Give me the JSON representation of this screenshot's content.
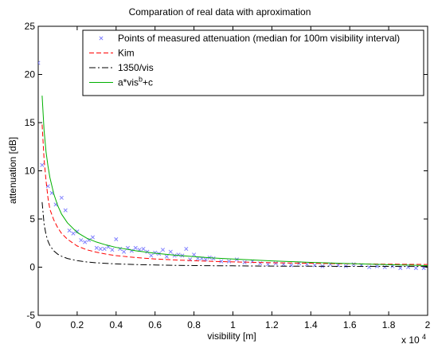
{
  "chart_data": {
    "type": "line",
    "title": "Comparation of real data with aproximation",
    "xlabel": "visibility [m]",
    "ylabel": "attenuation [dB]",
    "x_exponent_label": "x 10",
    "x_exponent_power": "4",
    "xlim": [
      0,
      20000
    ],
    "ylim": [
      -5,
      25
    ],
    "grid": false,
    "legend_placement": "top-right",
    "xticks": [
      {
        "value": 0,
        "label": "0"
      },
      {
        "value": 2000,
        "label": "0.2"
      },
      {
        "value": 4000,
        "label": "0.4"
      },
      {
        "value": 6000,
        "label": "0.6"
      },
      {
        "value": 8000,
        "label": "0.8"
      },
      {
        "value": 10000,
        "label": "1"
      },
      {
        "value": 12000,
        "label": "1.2"
      },
      {
        "value": 14000,
        "label": "1.4"
      },
      {
        "value": 16000,
        "label": "1.6"
      },
      {
        "value": 18000,
        "label": "1.8"
      },
      {
        "value": 20000,
        "label": "2"
      }
    ],
    "yticks": [
      {
        "value": -5,
        "label": "-5"
      },
      {
        "value": 0,
        "label": "0"
      },
      {
        "value": 5,
        "label": "5"
      },
      {
        "value": 10,
        "label": "10"
      },
      {
        "value": 15,
        "label": "15"
      },
      {
        "value": 20,
        "label": "20"
      },
      {
        "value": 25,
        "label": "25"
      }
    ],
    "series": [
      {
        "name": "Points of measured attenuation (median for 100m visibility interval)",
        "kind": "scatter",
        "marker": "x",
        "color": "#8080ff",
        "x": [
          0,
          200,
          500,
          700,
          900,
          1200,
          1400,
          1600,
          1800,
          2000,
          2200,
          2400,
          2600,
          2800,
          3000,
          3200,
          3400,
          3600,
          3800,
          4000,
          4200,
          4400,
          4600,
          4800,
          5000,
          5200,
          5400,
          5600,
          5800,
          6000,
          6200,
          6400,
          6600,
          6800,
          7000,
          7200,
          7400,
          7600,
          7800,
          8000,
          8200,
          8400,
          8600,
          8800,
          9000,
          9400,
          9800,
          10200,
          10600,
          11000,
          11400,
          11800,
          12200,
          12600,
          13000,
          13400,
          13800,
          14200,
          14600,
          15000,
          15400,
          15800,
          16200,
          16600,
          17000,
          17400,
          17800,
          18200,
          18600,
          19000,
          19400,
          19800
        ],
        "y": [
          21.2,
          10.6,
          8.4,
          7.7,
          6.5,
          7.2,
          5.9,
          3.8,
          3.5,
          3.7,
          2.8,
          2.6,
          2.8,
          3.1,
          2.0,
          1.9,
          1.9,
          2.1,
          1.8,
          2.9,
          1.9,
          1.6,
          2.0,
          1.7,
          2.0,
          1.8,
          1.9,
          1.6,
          1.2,
          1.5,
          1.4,
          1.8,
          1.1,
          1.6,
          1.2,
          1.3,
          1.2,
          1.9,
          0.8,
          1.3,
          0.9,
          0.9,
          0.8,
          1.0,
          0.9,
          0.6,
          0.6,
          0.8,
          0.5,
          0.6,
          0.4,
          0.3,
          0.4,
          0.3,
          0.2,
          0.4,
          0.3,
          0.2,
          0.1,
          0.3,
          0.2,
          0.1,
          0.3,
          0.2,
          0.0,
          0.1,
          0.0,
          0.1,
          -0.1,
          0.0,
          -0.1,
          -0.1
        ]
      },
      {
        "name": "Kim",
        "kind": "line",
        "dash": "6,3",
        "color": "#ff0000",
        "x": [
          200,
          300,
          400,
          500,
          600,
          800,
          1000,
          1200,
          1500,
          2000,
          2500,
          3000,
          3500,
          4000,
          5000,
          6000,
          7000,
          8000,
          9000,
          10000,
          12000,
          14000,
          16000,
          18000,
          20000
        ],
        "y": [
          14.8,
          11.2,
          9.0,
          7.2,
          6.0,
          4.9,
          4.1,
          3.5,
          2.9,
          2.2,
          1.8,
          1.55,
          1.35,
          1.2,
          1.0,
          0.85,
          0.75,
          0.67,
          0.6,
          0.55,
          0.46,
          0.4,
          0.35,
          0.31,
          0.28
        ]
      },
      {
        "name": "1350/vis",
        "kind": "line",
        "dash": "8,3,2,3",
        "color": "#000000",
        "x": [
          200,
          300,
          400,
          500,
          600,
          800,
          1000,
          1200,
          1500,
          2000,
          2500,
          3000,
          3500,
          4000,
          5000,
          6000,
          7000,
          8000,
          9000,
          10000,
          12000,
          14000,
          16000,
          18000,
          20000
        ],
        "y": [
          6.75,
          4.5,
          3.38,
          2.7,
          2.25,
          1.69,
          1.35,
          1.13,
          0.9,
          0.68,
          0.54,
          0.45,
          0.39,
          0.34,
          0.27,
          0.23,
          0.19,
          0.17,
          0.15,
          0.14,
          0.11,
          0.1,
          0.08,
          0.08,
          0.07
        ]
      },
      {
        "name": "a*vis^b+c",
        "kind": "line",
        "dash": "",
        "color": "#00b000",
        "x": [
          200,
          300,
          400,
          500,
          600,
          800,
          1000,
          1200,
          1500,
          2000,
          2500,
          3000,
          3500,
          4000,
          5000,
          6000,
          7000,
          8000,
          9000,
          10000,
          12000,
          14000,
          16000,
          18000,
          20000
        ],
        "y": [
          17.8,
          14.2,
          12.0,
          10.5,
          9.3,
          7.6,
          6.4,
          5.5,
          4.6,
          3.6,
          3.0,
          2.6,
          2.3,
          2.05,
          1.7,
          1.45,
          1.25,
          1.1,
          0.95,
          0.85,
          0.65,
          0.5,
          0.37,
          0.26,
          0.17
        ]
      }
    ],
    "legend": [
      {
        "label": "Points of measured attenuation (median for 100m visibility interval)"
      },
      {
        "label": "Kim"
      },
      {
        "label": "1350/vis"
      },
      {
        "label_main": "a*vis",
        "label_sup": "b",
        "label_tail": "+c"
      }
    ]
  }
}
